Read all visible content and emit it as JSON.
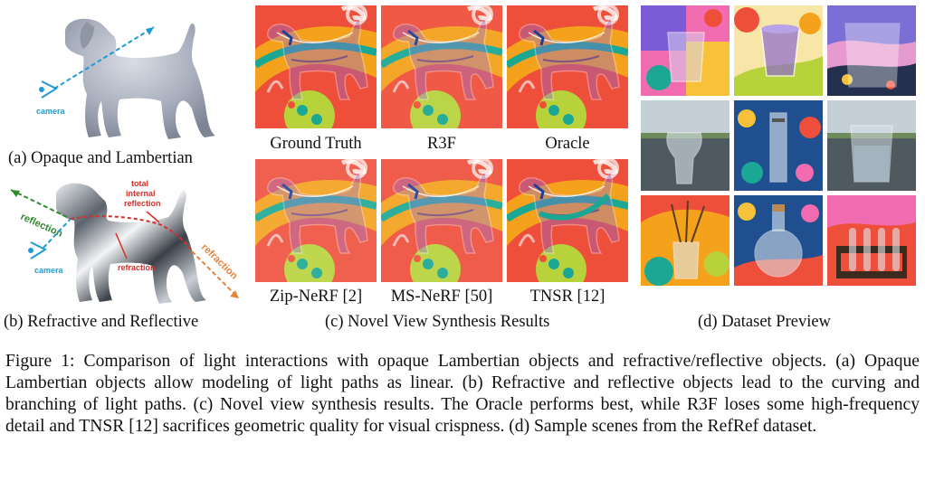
{
  "panel_a": {
    "caption": "(a) Opaque and Lambertian",
    "camera_label": "camera"
  },
  "panel_b": {
    "caption": "(b) Refractive and Reflective",
    "camera_label": "camera",
    "reflection_label": "reflection",
    "tir_label_1": "total",
    "tir_label_2": "internal",
    "tir_label_3": "reflection",
    "refraction_label": "refraction",
    "refraction_path_label": "refraction"
  },
  "panel_c": {
    "caption": "(c) Novel View Synthesis Results",
    "methods": [
      "Ground Truth",
      "R3F",
      "Oracle",
      "Zip-NeRF [2]",
      "MS-NeRF [50]",
      "TNSR [12]"
    ]
  },
  "panel_d": {
    "caption": "(d) Dataset Preview"
  },
  "figure_caption": "Figure 1: Comparison of light interactions with opaque Lambertian objects and refractive/reflective objects. (a) Opaque Lambertian objects allow modeling of light paths as linear. (b) Refractive and reflective objects lead to the curving and branching of light paths. (c) Novel view synthesis results. The Oracle performs best, while R3F loses some high-frequency detail and TNSR [12] sacrifices geometric quality for visual crispness. (d) Sample scenes from the RefRef dataset.",
  "colors": {
    "annotation_blue": "#1f9ad6",
    "annotation_green": "#2e8b2e",
    "annotation_red": "#d4302a",
    "annotation_orange": "#e8833a",
    "scene_orange": "#f4a11c",
    "scene_red": "#ee4f3a",
    "scene_teal": "#1aa894",
    "scene_green": "#b8d23c"
  }
}
